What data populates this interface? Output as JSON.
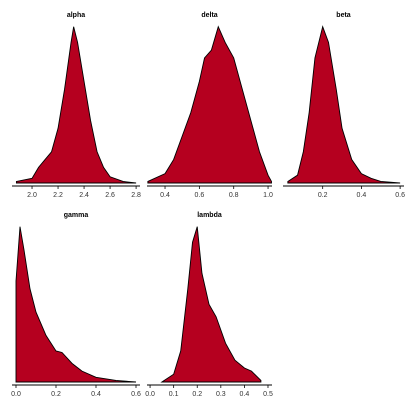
{
  "chart_data": [
    {
      "type": "area",
      "title": "alpha",
      "color": "#b5001f",
      "x": [
        1.88,
        2.0,
        2.05,
        2.1,
        2.15,
        2.2,
        2.25,
        2.3,
        2.32,
        2.35,
        2.4,
        2.45,
        2.5,
        2.55,
        2.6,
        2.7,
        2.8
      ],
      "values": [
        0.01,
        0.03,
        0.1,
        0.15,
        0.2,
        0.35,
        0.6,
        0.9,
        1.0,
        0.9,
        0.65,
        0.4,
        0.2,
        0.1,
        0.04,
        0.01,
        0.0
      ],
      "xlim": [
        1.846,
        2.83
      ],
      "ylim": [
        0,
        1.03
      ],
      "xticks": [
        {
          "value": 2.0,
          "label": "2.0"
        },
        2.2,
        2.4,
        2.6,
        2.8
      ]
    },
    {
      "type": "area",
      "title": "delta",
      "color": "#b5001f",
      "x": [
        0.3,
        0.4,
        0.45,
        0.5,
        0.55,
        0.6,
        0.63,
        0.67,
        0.71,
        0.75,
        0.8,
        0.85,
        0.9,
        0.95,
        1.0,
        1.02
      ],
      "values": [
        0.01,
        0.06,
        0.15,
        0.3,
        0.45,
        0.65,
        0.8,
        0.85,
        1.0,
        0.9,
        0.8,
        0.6,
        0.4,
        0.2,
        0.05,
        0.01
      ],
      "xlim": [
        0.295,
        1.023
      ],
      "ylim": [
        0,
        1.03
      ],
      "xticks": [
        0.4,
        0.6,
        0.8,
        {
          "value": 1.0,
          "label": "1.0"
        }
      ]
    },
    {
      "type": "area",
      "title": "beta",
      "color": "#b5001f",
      "x": [
        0.02,
        0.07,
        0.1,
        0.13,
        0.16,
        0.2,
        0.23,
        0.27,
        0.3,
        0.35,
        0.4,
        0.45,
        0.5,
        0.6
      ],
      "values": [
        0.01,
        0.05,
        0.2,
        0.45,
        0.8,
        1.0,
        0.9,
        0.6,
        0.35,
        0.15,
        0.06,
        0.03,
        0.01,
        0.0
      ],
      "xlim": [
        -0.005,
        0.62
      ],
      "ylim": [
        0,
        1.03
      ],
      "xticks": [
        0.2,
        0.4,
        0.6
      ]
    },
    {
      "type": "area",
      "title": "gamma",
      "color": "#b5001f",
      "x": [
        0.0,
        0.02,
        0.04,
        0.07,
        0.1,
        0.15,
        0.2,
        0.23,
        0.28,
        0.33,
        0.4,
        0.5,
        0.6
      ],
      "values": [
        0.65,
        1.0,
        0.85,
        0.6,
        0.45,
        0.3,
        0.2,
        0.19,
        0.12,
        0.07,
        0.03,
        0.01,
        0.0
      ],
      "xlim": [
        -0.02,
        0.62
      ],
      "ylim": [
        0,
        1.03
      ],
      "xticks": [
        {
          "value": 0.0,
          "label": "0.0"
        },
        0.2,
        0.4,
        0.6
      ]
    },
    {
      "type": "area",
      "title": "lambda",
      "color": "#b5001f",
      "x": [
        0.05,
        0.1,
        0.13,
        0.16,
        0.18,
        0.2,
        0.22,
        0.25,
        0.28,
        0.32,
        0.36,
        0.4,
        0.43,
        0.47
      ],
      "values": [
        0.0,
        0.05,
        0.2,
        0.6,
        0.9,
        1.0,
        0.7,
        0.5,
        0.42,
        0.25,
        0.14,
        0.09,
        0.07,
        0.01
      ],
      "xlim": [
        -0.013,
        0.517
      ],
      "ylim": [
        0,
        1.03
      ],
      "xticks": [
        {
          "value": 0.0,
          "label": "0.0"
        },
        0.1,
        0.2,
        0.3,
        0.4,
        0.5
      ]
    }
  ]
}
